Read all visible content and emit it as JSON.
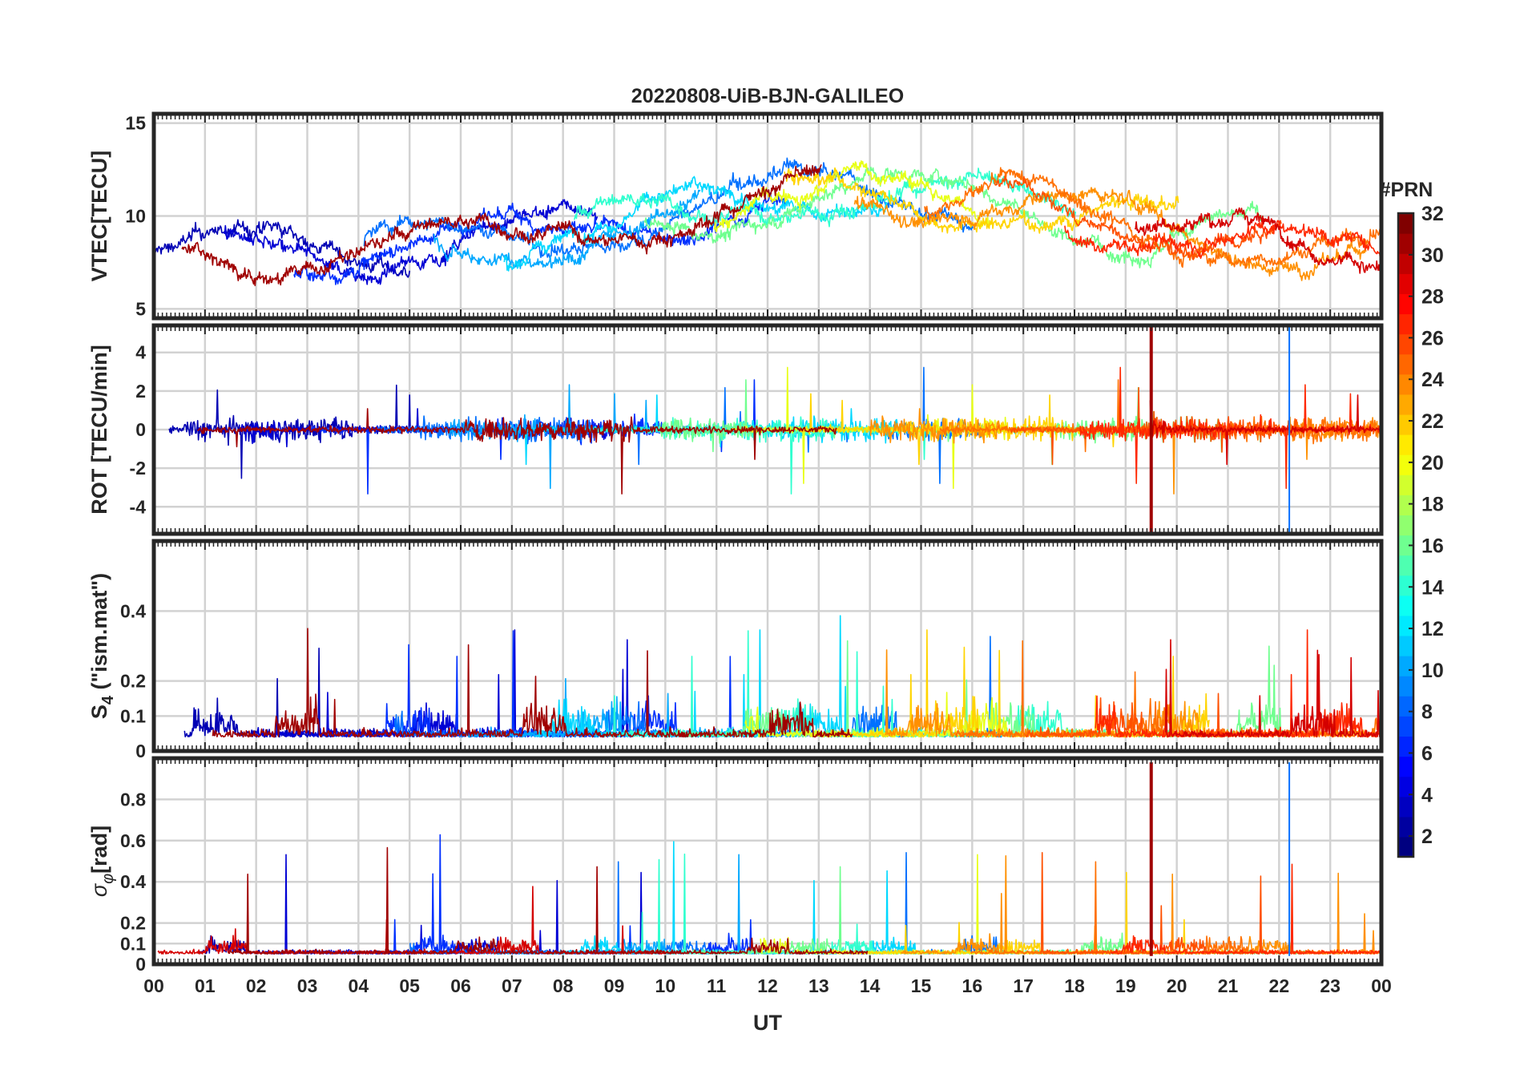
{
  "title": "20220808-UiB-BJN-GALILEO",
  "xlabel": "UT",
  "colorbar": {
    "label": "#PRN",
    "min": 1,
    "max": 32,
    "ticks": [
      "2",
      "4",
      "6",
      "8",
      "10",
      "12",
      "14",
      "16",
      "18",
      "20",
      "22",
      "24",
      "26",
      "28",
      "30",
      "32"
    ],
    "colormap": "jet",
    "n_levels": 32
  },
  "chart_data": [
    {
      "type": "line",
      "panel": "vtec",
      "ylabel": "VTEC[TECU]",
      "ylim": [
        4.5,
        15.5
      ],
      "yticks": [
        5,
        10,
        15
      ],
      "xlim": [
        0,
        24
      ],
      "xticks": [
        "00",
        "01",
        "02",
        "03",
        "04",
        "05",
        "06",
        "07",
        "08",
        "09",
        "10",
        "11",
        "12",
        "13",
        "14",
        "15",
        "16",
        "17",
        "18",
        "19",
        "20",
        "21",
        "22",
        "23",
        "00"
      ],
      "grid": true,
      "series_by_prn": true
    },
    {
      "type": "line",
      "panel": "rot",
      "ylabel": "ROT [TECU/min]",
      "ylim": [
        -5.4,
        5.4
      ],
      "yticks": [
        -4,
        -2,
        0,
        2,
        4
      ],
      "xlim": [
        0,
        24
      ],
      "grid": true,
      "series_by_prn": true
    },
    {
      "type": "line",
      "panel": "s4",
      "ylabel": "S4 (\"ism.mat\")",
      "ylabel_main": "S",
      "ylabel_sub": "4",
      "ylabel_rest": " (\"ism.mat\")",
      "ylim": [
        0,
        0.6
      ],
      "yticks": [
        "0",
        "0.1",
        "0.2",
        "0.4"
      ],
      "ytick_values": [
        0,
        0.1,
        0.2,
        0.4
      ],
      "xlim": [
        0,
        24
      ],
      "grid": true,
      "series_by_prn": true
    },
    {
      "type": "line",
      "panel": "sigma",
      "ylabel": "σφ[rad]",
      "ylabel_main": "σ",
      "ylabel_sub": "φ",
      "ylabel_rest": "[rad]",
      "ylim": [
        0,
        1.0
      ],
      "yticks": [
        "0",
        "0.1",
        "0.2",
        "0.4",
        "0.6",
        "0.8"
      ],
      "ytick_values": [
        0,
        0.1,
        0.2,
        0.4,
        0.6,
        0.8
      ],
      "xlim": [
        0,
        24
      ],
      "grid": true,
      "series_by_prn": true
    }
  ],
  "series": [
    {
      "prn": 2,
      "color": "#0000b4"
    },
    {
      "prn": 3,
      "color": "#0000d4"
    },
    {
      "prn": 5,
      "color": "#0030ff"
    },
    {
      "prn": 7,
      "color": "#0070ff"
    },
    {
      "prn": 9,
      "color": "#00a8ff"
    },
    {
      "prn": 11,
      "color": "#00d8ff"
    },
    {
      "prn": 13,
      "color": "#30ffcf"
    },
    {
      "prn": 15,
      "color": "#70ff8f"
    },
    {
      "prn": 19,
      "color": "#e8ff17"
    },
    {
      "prn": 21,
      "color": "#ffd400"
    },
    {
      "prn": 24,
      "color": "#ff9000"
    },
    {
      "prn": 25,
      "color": "#ff7000"
    },
    {
      "prn": 26,
      "color": "#ff5000"
    },
    {
      "prn": 27,
      "color": "#ff2800"
    },
    {
      "prn": 30,
      "color": "#d40000"
    },
    {
      "prn": 31,
      "color": "#a00000"
    }
  ]
}
